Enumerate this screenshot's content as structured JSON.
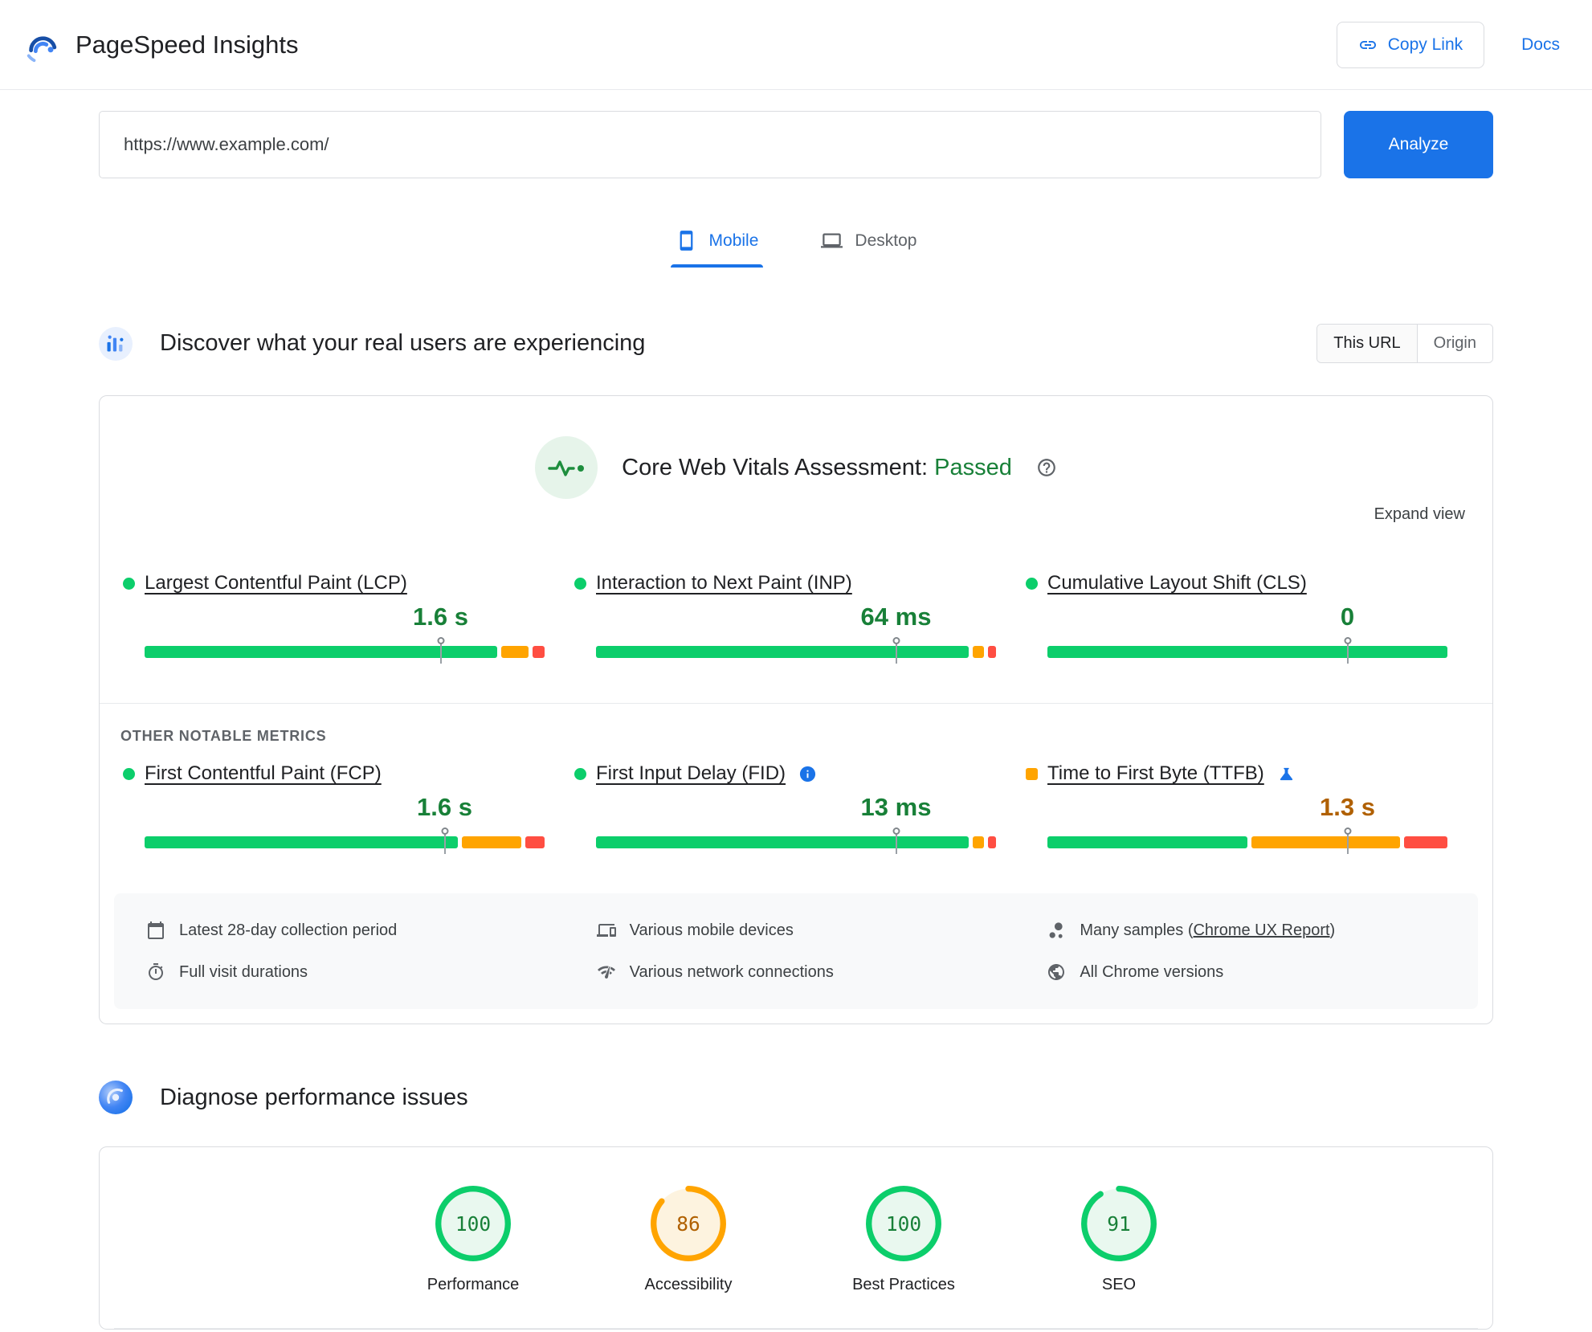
{
  "colors": {
    "blue": "#1a73e8",
    "green": "#0cce6b",
    "green-text": "#188038",
    "orange": "#ffa400",
    "orange-text": "#b06000",
    "red": "#ff4e42",
    "dark-text": "#202124",
    "border": "#dadce0",
    "chip-bg": "#f8f9fa"
  },
  "header": {
    "app_title": "PageSpeed Insights",
    "copy_link_label": "Copy Link",
    "docs_label": "Docs"
  },
  "search": {
    "url_value": "https://www.example.com/",
    "analyze_label": "Analyze"
  },
  "tabs": [
    {
      "label": "Mobile"
    },
    {
      "label": "Desktop"
    }
  ],
  "field_section": {
    "title": "Discover what your real users are experiencing",
    "scope_toggle": {
      "this_url": "This URL",
      "origin": "Origin",
      "selected": "This URL"
    },
    "assessment_label": "Core Web Vitals Assessment:",
    "assessment_result": "Passed",
    "expand_view_label": "Expand view",
    "core_metrics": [
      {
        "name": "Largest Contentful Paint (LCP)",
        "value": "1.6 s",
        "rating": "good",
        "distribution": {
          "good": 90,
          "ni": 7,
          "poor": 3
        },
        "marker": 74
      },
      {
        "name": "Interaction to Next Paint (INP)",
        "value": "64 ms",
        "rating": "good",
        "distribution": {
          "good": 95,
          "ni": 3,
          "poor": 2
        },
        "marker": 75
      },
      {
        "name": "Cumulative Layout Shift (CLS)",
        "value": "0",
        "rating": "good",
        "distribution": {
          "good": 100,
          "ni": 0,
          "poor": 0
        },
        "marker": 75
      }
    ],
    "other_metrics_heading": "OTHER NOTABLE METRICS",
    "other_metrics": [
      {
        "name": "First Contentful Paint (FCP)",
        "value": "1.6 s",
        "rating": "good",
        "distribution": {
          "good": 80,
          "ni": 15,
          "poor": 5
        },
        "marker": 75
      },
      {
        "name": "First Input Delay (FID)",
        "value": "13 ms",
        "rating": "good",
        "extra_icon": "info",
        "distribution": {
          "good": 95,
          "ni": 3,
          "poor": 2
        },
        "marker": 75
      },
      {
        "name": "Time to First Byte (TTFB)",
        "value": "1.3 s",
        "rating": "average",
        "indicator_shape": "square",
        "extra_icon": "flask",
        "distribution": {
          "good": 51,
          "ni": 38,
          "poor": 11
        },
        "marker": 75
      }
    ],
    "collection_details": [
      {
        "icon": "calendar",
        "text": "Latest 28-day collection period"
      },
      {
        "icon": "devices",
        "text": "Various mobile devices"
      },
      {
        "icon": "samples",
        "prefix": "Many samples (",
        "link": "Chrome UX Report",
        "suffix": ")"
      },
      {
        "icon": "timer",
        "text": "Full visit durations"
      },
      {
        "icon": "network",
        "text": "Various network connections"
      },
      {
        "icon": "chrome",
        "text": "All Chrome versions"
      }
    ]
  },
  "lab_section": {
    "title": "Diagnose performance issues",
    "scores": [
      {
        "label": "Performance",
        "value": 100,
        "status": "good"
      },
      {
        "label": "Accessibility",
        "value": 86,
        "status": "average"
      },
      {
        "label": "Best Practices",
        "value": 100,
        "status": "good"
      },
      {
        "label": "SEO",
        "value": 91,
        "status": "good"
      }
    ]
  }
}
